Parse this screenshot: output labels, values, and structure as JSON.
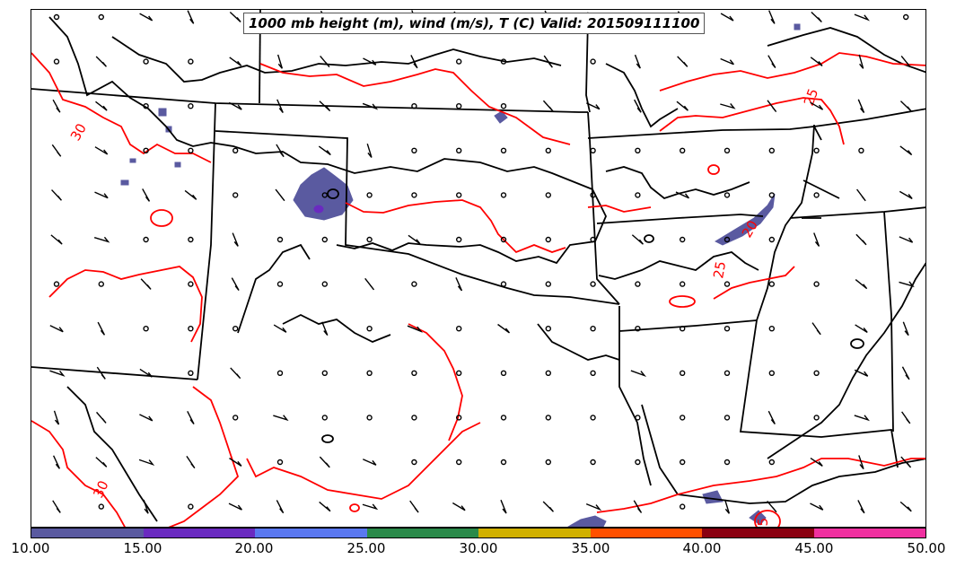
{
  "title": "1000 mb height (m), wind (m/s), T (C) Valid: 201509111100",
  "temperature_contour_labels": [
    "30",
    "30",
    "25",
    "20",
    "25",
    "25"
  ],
  "colorbar": {
    "tick_labels": [
      "10.00",
      "15.00",
      "20.00",
      "25.00",
      "30.00",
      "35.00",
      "40.00",
      "45.00",
      "50.00"
    ],
    "colors": [
      "#5a5aa0",
      "#6a2ac0",
      "#5a78f0",
      "#2a8a4a",
      "#d0b000",
      "#ff5000",
      "#8a0010",
      "#f030a0"
    ]
  },
  "colors": {
    "temperature_contour": "#ff0000",
    "height_contour": "#000000",
    "state_border": "#000000",
    "shading_low": "#5a5aa0"
  }
}
